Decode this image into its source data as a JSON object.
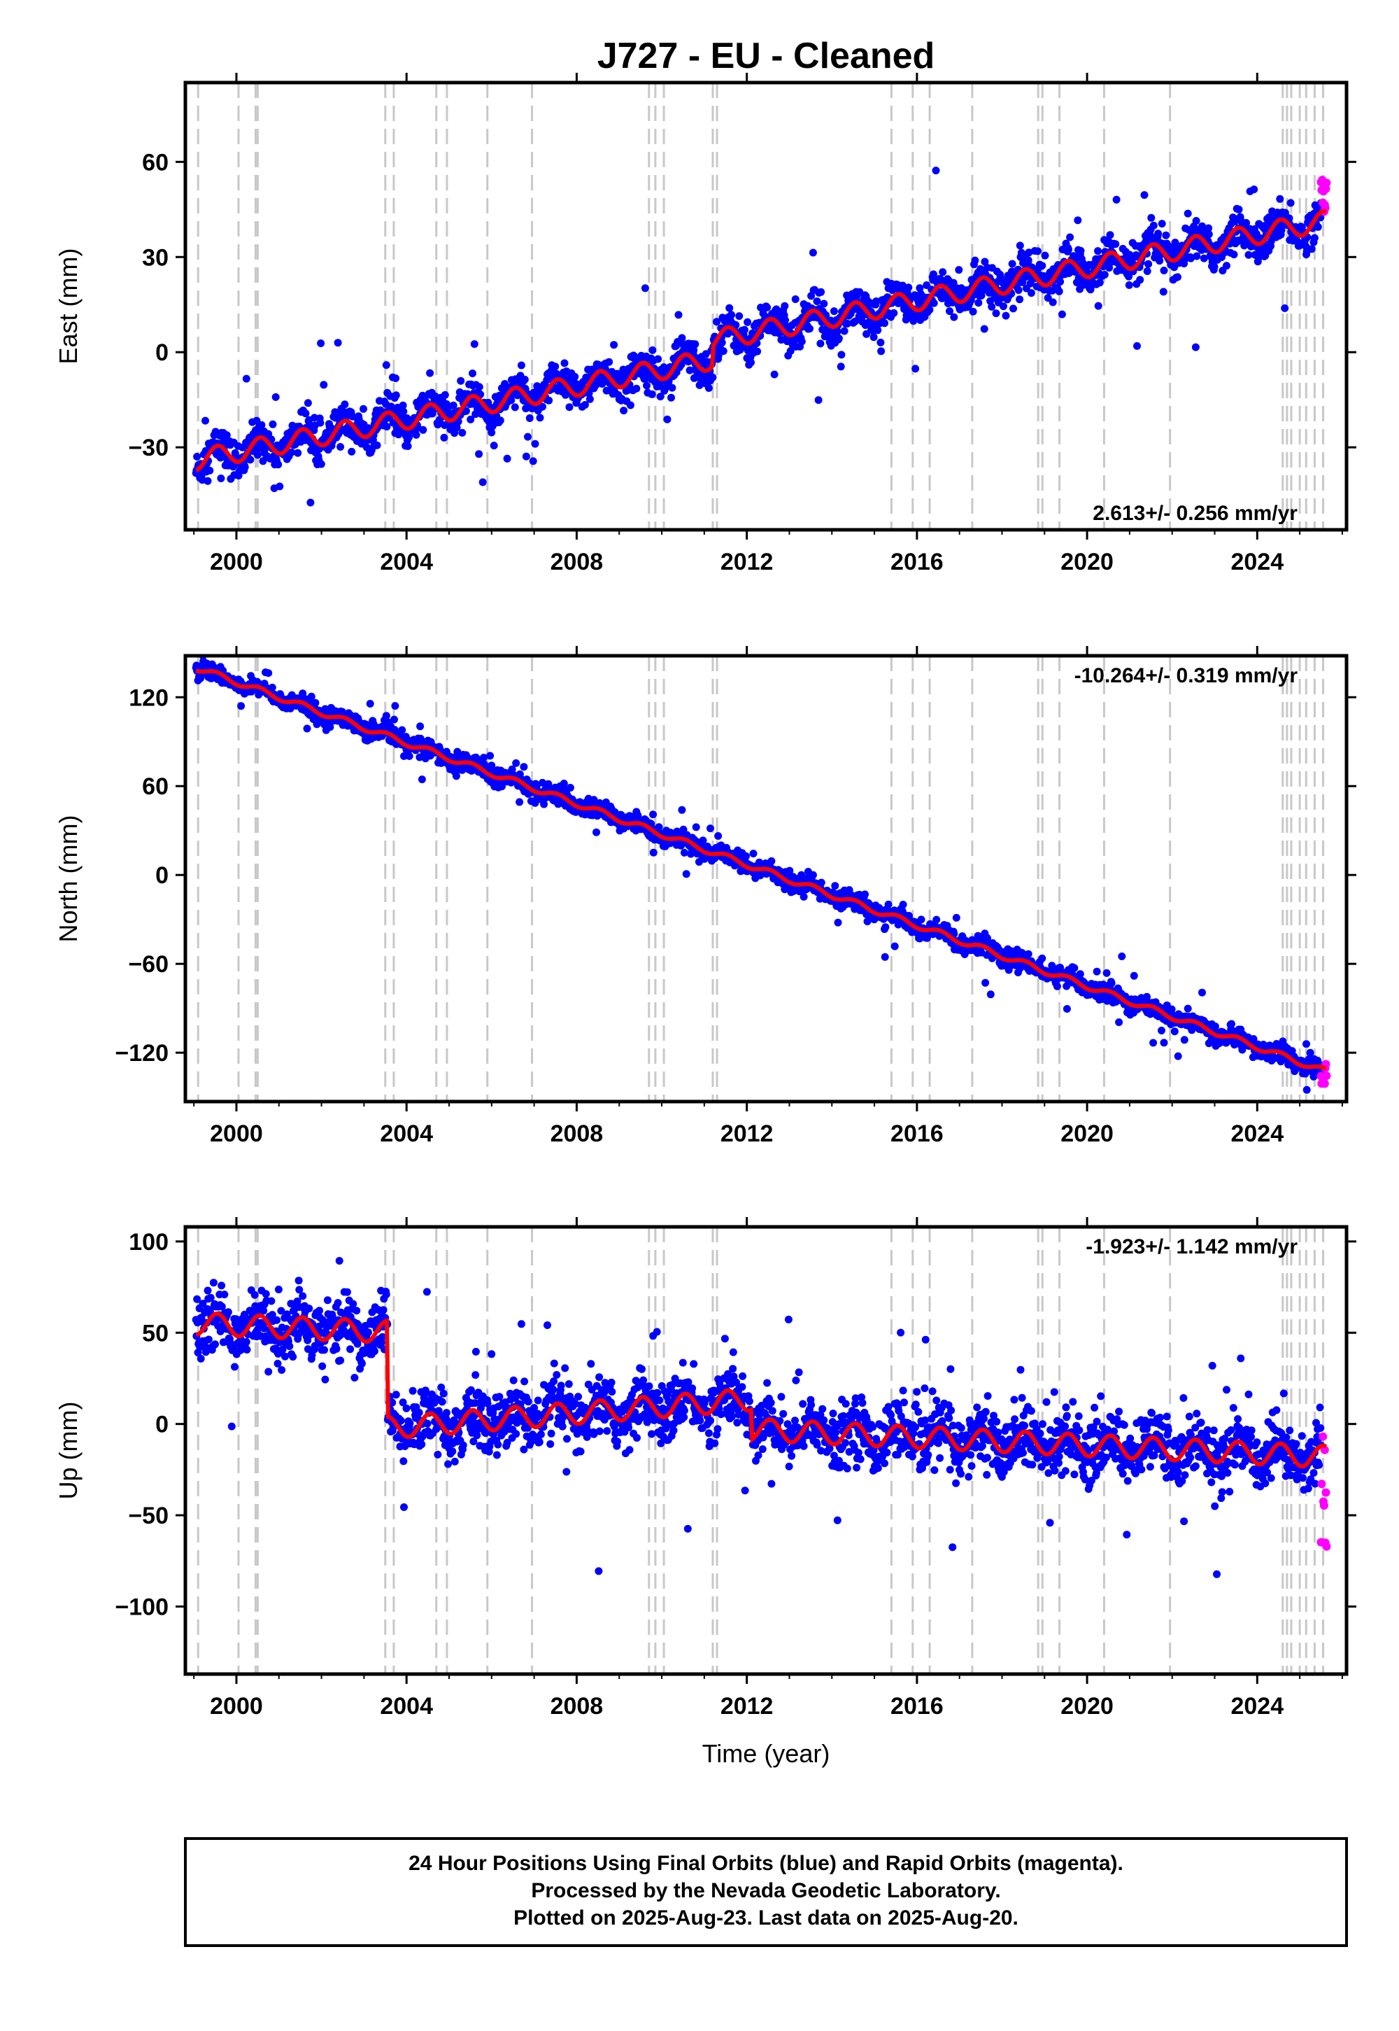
{
  "figure": {
    "title": "J727  - EU - Cleaned",
    "x_label": "Time (year)"
  },
  "footer": {
    "line1": "24 Hour Positions Using Final Orbits (blue) and Rapid Orbits (magenta).",
    "line2": "Processed by the Nevada Geodetic Laboratory.",
    "line3": "Plotted on 2025-Aug-23. Last data on 2025-Aug-20."
  },
  "colors": {
    "final_orbits": "#0000ff",
    "rapid_orbits": "#ff00ff",
    "model": "#ff0000",
    "event_lines": "#c8c8c8"
  },
  "chart_data": [
    {
      "type": "scatter",
      "id": "east",
      "ylabel": "East (mm)",
      "xlim": [
        1998.8,
        2026.1
      ],
      "ylim": [
        -56,
        85
      ],
      "x_ticks": [
        2000,
        2004,
        2008,
        2012,
        2016,
        2020,
        2024
      ],
      "y_ticks": [
        -30,
        0,
        30,
        60
      ],
      "rate_label": "2.613+/- 0.256 mm/yr",
      "rate_position": "bottom-right",
      "model": {
        "start": [
          1999.05,
          -34
        ],
        "rate": 2.613,
        "seasonal_amplitude": 3.2,
        "scatter_sd": 3,
        "offsets": [
          [
            2011.2,
            6
          ]
        ]
      },
      "rapid_y_range": [
        44,
        56
      ]
    },
    {
      "type": "scatter",
      "id": "north",
      "ylabel": "North (mm)",
      "xlim": [
        1998.8,
        2026.1
      ],
      "ylim": [
        -153,
        148
      ],
      "x_ticks": [
        2000,
        2004,
        2008,
        2012,
        2016,
        2020,
        2024
      ],
      "y_ticks": [
        -120,
        -60,
        0,
        60,
        120
      ],
      "rate_label": "-10.264+/- 0.319 mm/yr",
      "rate_position": "top-right",
      "model": {
        "start": [
          1999.05,
          140
        ],
        "rate": -10.264,
        "seasonal_amplitude": 2,
        "scatter_sd": 3,
        "offsets": []
      },
      "rapid_y_range": [
        -144,
        -125
      ]
    },
    {
      "type": "scatter",
      "id": "up",
      "ylabel": "Up (mm)",
      "xlim": [
        1998.8,
        2026.1
      ],
      "ylim": [
        -137,
        108
      ],
      "x_ticks": [
        2000,
        2004,
        2008,
        2012,
        2016,
        2020,
        2024
      ],
      "y_ticks": [
        -100,
        -50,
        0,
        50,
        100
      ],
      "rate_label": "-1.923+/- 1.142 mm/yr",
      "rate_position": "top-right",
      "model": {
        "segments": [
          {
            "from": 1999.05,
            "to": 2003.55,
            "y0": 55,
            "rate": -1.0
          },
          {
            "from": 2003.55,
            "to": 2012.1,
            "y0": -2,
            "rate": 1.8
          },
          {
            "from": 2012.1,
            "to": 2025.6,
            "y0": -3,
            "rate": -1.1
          }
        ],
        "seasonal_amplitude": 6,
        "scatter_sd": 8
      },
      "rapid_y_range": [
        -70,
        -5
      ]
    }
  ],
  "event_lines_years": [
    1999.1,
    2000.05,
    2000.45,
    2000.5,
    2003.5,
    2003.7,
    2004.7,
    2004.95,
    2005.9,
    2006.95,
    2009.7,
    2009.85,
    2010.05,
    2011.2,
    2011.3,
    2015.4,
    2015.9,
    2016.3,
    2017.3,
    2018.85,
    2018.95,
    2019.35,
    2020.4,
    2021.95,
    2024.6,
    2024.7,
    2024.8,
    2025.0,
    2025.15,
    2025.35,
    2025.55
  ]
}
